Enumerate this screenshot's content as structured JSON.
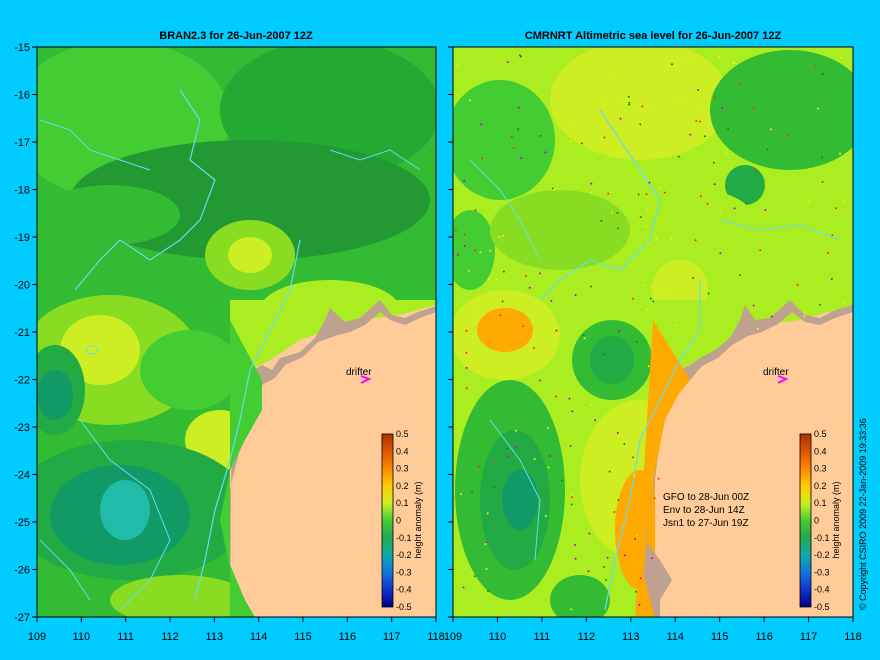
{
  "panels": [
    {
      "title": "BRAN2.3 for 26-Jun-2007 12Z",
      "drifter_label": "drifter",
      "colorbar_label": "height anomaly (m)",
      "legend_lines": []
    },
    {
      "title": "CMRNRT Altimetric sea level  for 26-Jun-2007 12Z",
      "drifter_label": "drifter",
      "colorbar_label": "height anomaly (m)",
      "legend_lines": [
        "GFO to 28-Jun 00Z",
        "Env to 28-Jun 14Z",
        "Jsn1 to 27-Jun 19Z"
      ]
    }
  ],
  "axes": {
    "lat_ticks": [
      "-15",
      "-16",
      "-17",
      "-18",
      "-19",
      "-20",
      "-21",
      "-22",
      "-23",
      "-24",
      "-25",
      "-26",
      "-27"
    ],
    "lon_ticks": [
      "109",
      "110",
      "111",
      "112",
      "113",
      "114",
      "115",
      "116",
      "117",
      "118"
    ]
  },
  "colorbar": {
    "ticks": [
      "0.5",
      "0.4",
      "0.3",
      "0.2",
      "0.1",
      "0",
      "-0.1",
      "-0.2",
      "-0.3",
      "-0.4",
      "-0.5"
    ]
  },
  "copyright": "© Copyright CSIRO 2009   22-Jan-2009 19:33:36",
  "colors": {
    "background": "#00ccff",
    "land": "#ffcc99",
    "drifter": "#ff00ff",
    "coast_line": "#66ddee"
  }
}
